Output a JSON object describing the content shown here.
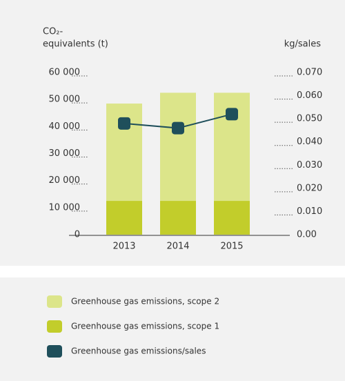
{
  "chart_data": {
    "type": "bar",
    "ylabel": [
      "CO₂-",
      "equivalents (t)"
    ],
    "y2label": "kg/sales",
    "categories": [
      "2013",
      "2014",
      "2015"
    ],
    "series": [
      {
        "name": "Greenhouse gas emissions, scope 2",
        "color": "#dce58a",
        "values": [
          36000,
          40000,
          40000
        ]
      },
      {
        "name": "Greenhouse gas emissions, scope 1",
        "color": "#c2cd2b",
        "values": [
          12500,
          12500,
          12500
        ]
      },
      {
        "name": "Greenhouse gas emissions/sales",
        "color": "#1f4f5b",
        "values": [
          0.048,
          0.046,
          0.052
        ],
        "axis": "y2",
        "type": "line"
      }
    ],
    "ylim": [
      0,
      60000
    ],
    "yticks": [
      0,
      {
        "value": 10000,
        "label": "10 000"
      },
      {
        "value": 20000,
        "label": "20 000"
      },
      {
        "value": 30000,
        "label": "30 000"
      },
      {
        "value": 40000,
        "label": "40 000"
      },
      {
        "value": 50000,
        "label": "50 000"
      },
      {
        "value": 60000,
        "label": "60 000"
      }
    ],
    "y2lim": [
      0,
      0.07
    ],
    "y2ticks": [
      {
        "value": 0,
        "label": "0.00"
      },
      {
        "value": 0.01,
        "label": "0.010"
      },
      {
        "value": 0.02,
        "label": "0.020"
      },
      {
        "value": 0.03,
        "label": "0.030"
      },
      {
        "value": 0.04,
        "label": "0.040"
      },
      {
        "value": 0.05,
        "label": "0.050"
      },
      {
        "value": 0.06,
        "label": "0.060"
      },
      {
        "value": 0.07,
        "label": "0.070"
      }
    ]
  }
}
